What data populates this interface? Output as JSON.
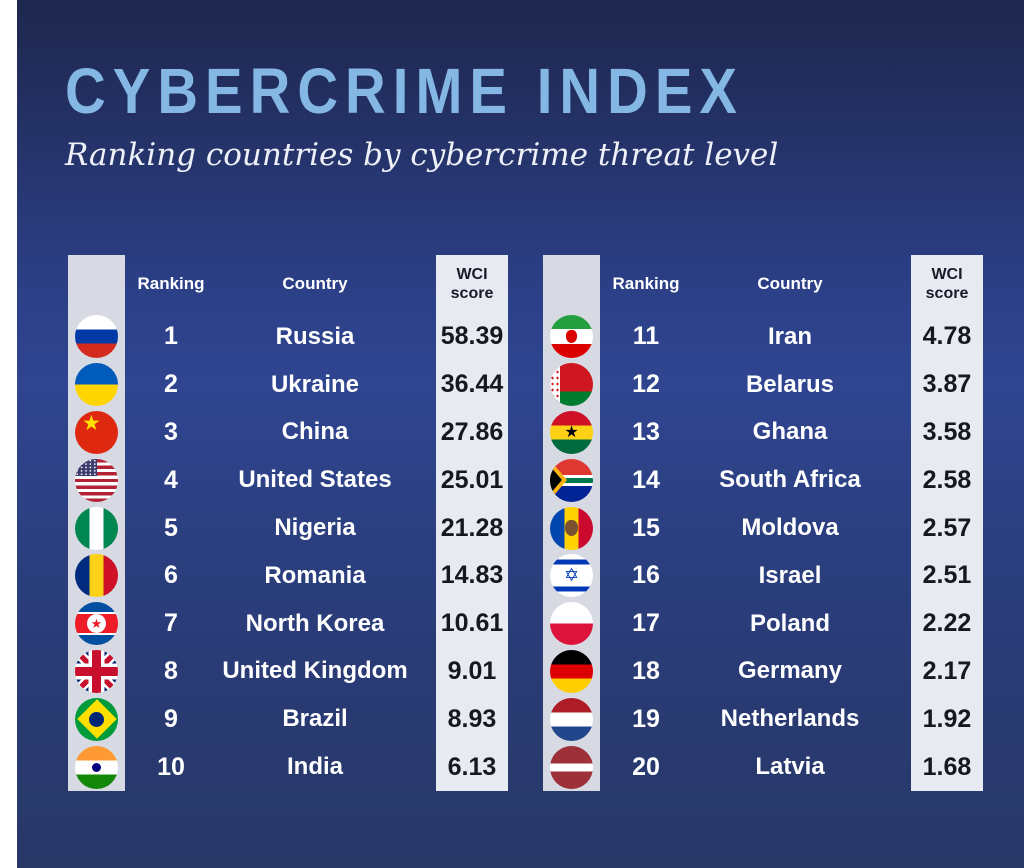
{
  "headers": {
    "ranking": "Ranking",
    "country": "Country",
    "score": "WCI score"
  },
  "chart_data": {
    "type": "table",
    "title": "CYBERCRIME INDEX",
    "subtitle": "Ranking countries by cybercrime threat level",
    "columns": [
      "Ranking",
      "Country",
      "WCI score"
    ],
    "rows": [
      {
        "ranking": "1",
        "country": "Russia",
        "score": "58.39",
        "flag": "russia"
      },
      {
        "ranking": "2",
        "country": "Ukraine",
        "score": "36.44",
        "flag": "ukraine"
      },
      {
        "ranking": "3",
        "country": "China",
        "score": "27.86",
        "flag": "china"
      },
      {
        "ranking": "4",
        "country": "United States",
        "score": "25.01",
        "flag": "united-states"
      },
      {
        "ranking": "5",
        "country": "Nigeria",
        "score": "21.28",
        "flag": "nigeria"
      },
      {
        "ranking": "6",
        "country": "Romania",
        "score": "14.83",
        "flag": "romania"
      },
      {
        "ranking": "7",
        "country": "North Korea",
        "score": "10.61",
        "flag": "north-korea"
      },
      {
        "ranking": "8",
        "country": "United Kingdom",
        "score": "9.01",
        "flag": "united-kingdom"
      },
      {
        "ranking": "9",
        "country": "Brazil",
        "score": "8.93",
        "flag": "brazil"
      },
      {
        "ranking": "10",
        "country": "India",
        "score": "6.13",
        "flag": "india"
      },
      {
        "ranking": "11",
        "country": "Iran",
        "score": "4.78",
        "flag": "iran"
      },
      {
        "ranking": "12",
        "country": "Belarus",
        "score": "3.87",
        "flag": "belarus"
      },
      {
        "ranking": "13",
        "country": "Ghana",
        "score": "3.58",
        "flag": "ghana"
      },
      {
        "ranking": "14",
        "country": "South Africa",
        "score": "2.58",
        "flag": "south-africa"
      },
      {
        "ranking": "15",
        "country": "Moldova",
        "score": "2.57",
        "flag": "moldova"
      },
      {
        "ranking": "16",
        "country": "Israel",
        "score": "2.51",
        "flag": "israel"
      },
      {
        "ranking": "17",
        "country": "Poland",
        "score": "2.22",
        "flag": "poland"
      },
      {
        "ranking": "18",
        "country": "Germany",
        "score": "2.17",
        "flag": "germany"
      },
      {
        "ranking": "19",
        "country": "Netherlands",
        "score": "1.92",
        "flag": "netherlands"
      },
      {
        "ranking": "20",
        "country": "Latvia",
        "score": "1.68",
        "flag": "latvia"
      }
    ]
  },
  "colors": {
    "background_top": "#1e274d",
    "background_mid": "#2f4590",
    "background_bottom": "#283867",
    "title": "#84b7e3",
    "subtitle": "#eef1f8",
    "flag_strip": "#d7d9e3",
    "score_strip": "#e8eaf1",
    "row_text": "#ffffff",
    "score_text": "#17171f"
  }
}
